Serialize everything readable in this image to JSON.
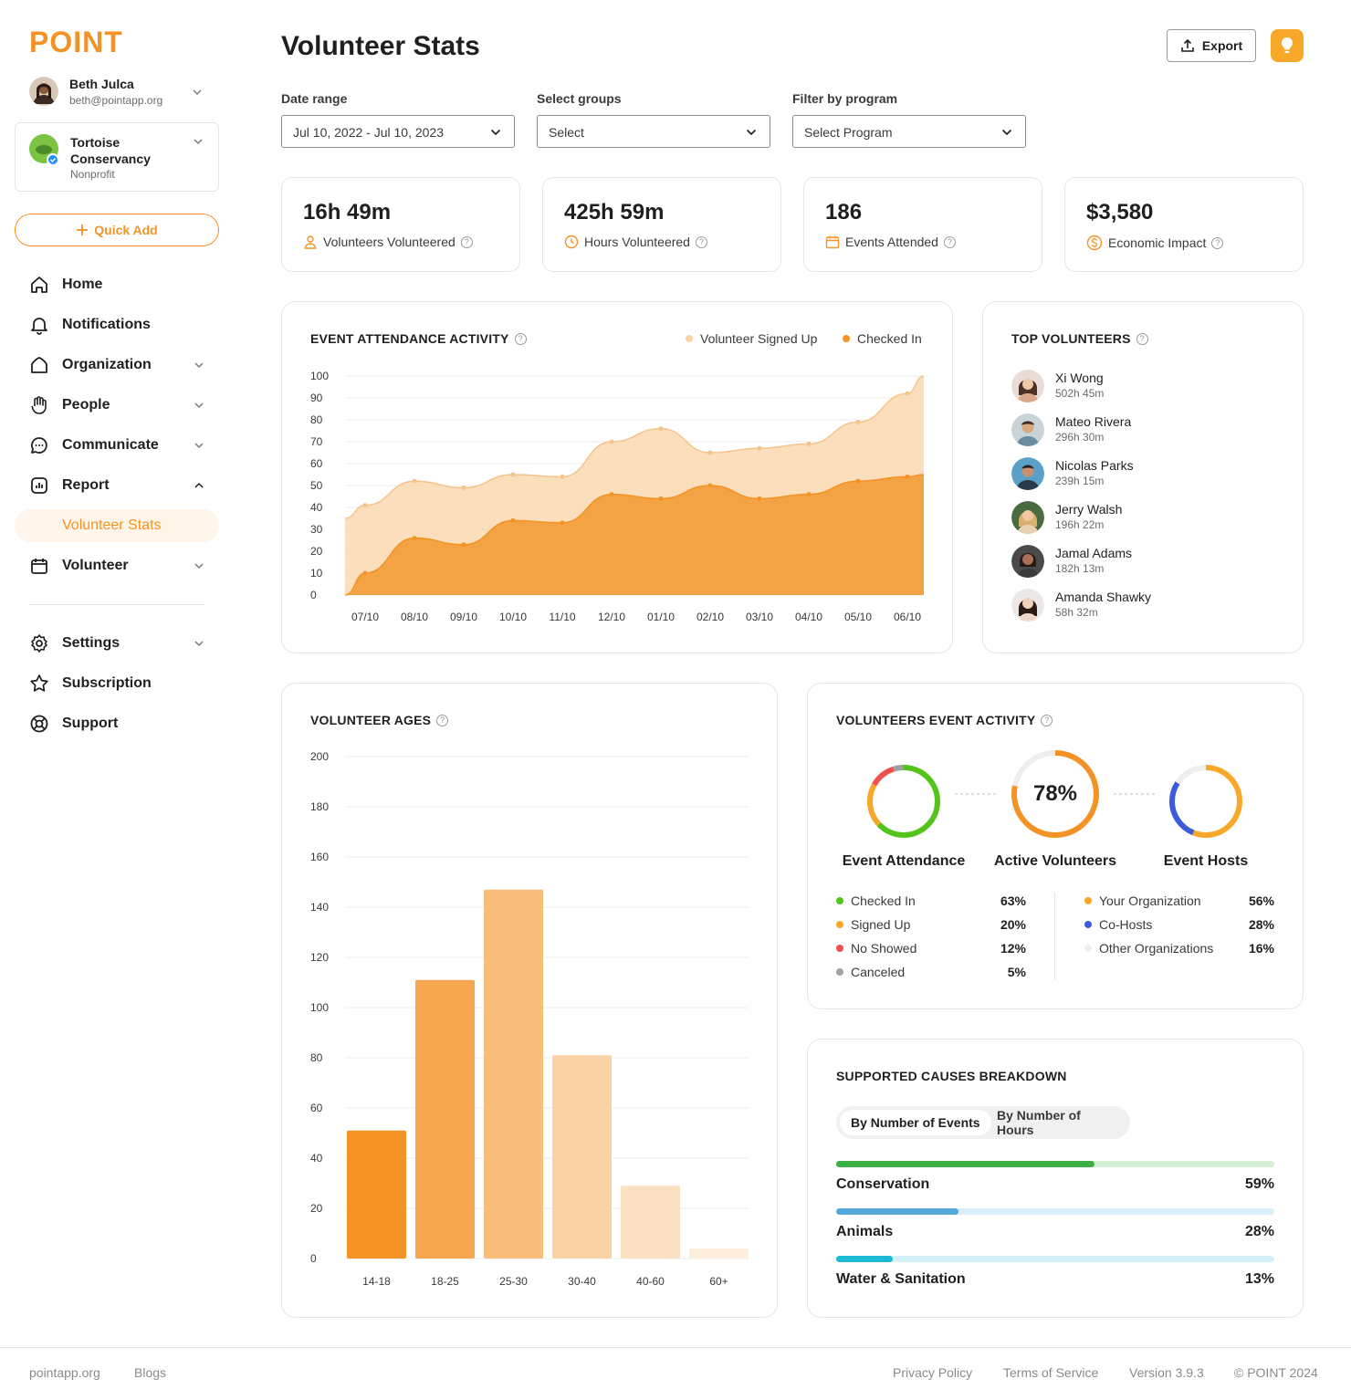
{
  "brand": {
    "logo": "POINT",
    "accent": "#f39325"
  },
  "user": {
    "name": "Beth Julca",
    "email": "beth@pointapp.org"
  },
  "org": {
    "name": "Tortoise Conservancy",
    "type": "Nonprofit"
  },
  "quick_add": "Quick Add",
  "nav": {
    "home": "Home",
    "notifications": "Notifications",
    "organization": "Organization",
    "people": "People",
    "communicate": "Communicate",
    "report": "Report",
    "volunteer_stats": "Volunteer Stats",
    "volunteer": "Volunteer",
    "settings": "Settings",
    "subscription": "Subscription",
    "support": "Support"
  },
  "header": {
    "title": "Volunteer Stats",
    "export": "Export"
  },
  "filters": {
    "date_label": "Date range",
    "date_value": "Jul 10, 2022 - Jul 10, 2023",
    "groups_label": "Select groups",
    "groups_value": "Select",
    "program_label": "Filter by program",
    "program_value": "Select Program"
  },
  "stats": [
    {
      "value": "16h 49m",
      "label": "Volunteers Volunteered",
      "icon": "person-icon"
    },
    {
      "value": "425h 59m",
      "label": "Hours Volunteered",
      "icon": "clock-icon"
    },
    {
      "value": "186",
      "label": "Events Attended",
      "icon": "calendar-icon"
    },
    {
      "value": "$3,580",
      "label": "Economic Impact",
      "icon": "dollar-icon"
    }
  ],
  "attendance": {
    "title": "EVENT ATTENDANCE ACTIVITY",
    "legend_signed": "Volunteer Signed Up",
    "legend_checked": "Checked In"
  },
  "top_volunteers": {
    "title": "TOP VOLUNTEERS",
    "items": [
      {
        "name": "Xi Wong",
        "hours": "502h 45m"
      },
      {
        "name": "Mateo Rivera",
        "hours": "296h 30m"
      },
      {
        "name": "Nicolas Parks",
        "hours": "239h 15m"
      },
      {
        "name": "Jerry Walsh",
        "hours": "196h 22m"
      },
      {
        "name": "Jamal Adams",
        "hours": "182h 13m"
      },
      {
        "name": "Amanda Shawky",
        "hours": "58h 32m"
      }
    ]
  },
  "ages": {
    "title": "VOLUNTEER AGES"
  },
  "event_activity": {
    "title": "VOLUNTEERS EVENT ACTIVITY",
    "attendance_label": "Event Attendance",
    "active_label": "Active Volunteers",
    "active_value": "78%",
    "hosts_label": "Event Hosts",
    "attendance_items": [
      {
        "label": "Checked In",
        "value": "63%",
        "color": "#52c41a"
      },
      {
        "label": "Signed Up",
        "value": "20%",
        "color": "#f7a829"
      },
      {
        "label": "No Showed",
        "value": "12%",
        "color": "#f05050"
      },
      {
        "label": "Canceled",
        "value": "5%",
        "color": "#a0a0a0"
      }
    ],
    "host_items": [
      {
        "label": "Your Organization",
        "value": "56%",
        "color": "#f7a829"
      },
      {
        "label": "Co-Hosts",
        "value": "28%",
        "color": "#3b5bdb"
      },
      {
        "label": "Other Organizations",
        "value": "16%",
        "color": "#eeeeee"
      }
    ]
  },
  "causes": {
    "title": "SUPPORTED CAUSES BREAKDOWN",
    "tab_events": "By Number of Events",
    "tab_hours": "By Number of Hours",
    "items": [
      {
        "label": "Conservation",
        "value": "59%",
        "pct": 0.59,
        "color": "#3cb043",
        "track": "#d4efd6"
      },
      {
        "label": "Animals",
        "value": "28%",
        "pct": 0.28,
        "color": "#55a8d8",
        "track": "#dceef8"
      },
      {
        "label": "Water & Sanitation",
        "value": "13%",
        "pct": 0.13,
        "color": "#1eb8d8",
        "track": "#d2f1f8"
      }
    ]
  },
  "footer": {
    "site": "pointapp.org",
    "blogs": "Blogs",
    "privacy": "Privacy Policy",
    "terms": "Terms of Service",
    "version": "Version 3.9.3",
    "copyright": "© POINT 2024"
  },
  "chart_data": [
    {
      "type": "area",
      "title": "EVENT ATTENDANCE ACTIVITY",
      "x": [
        "07/10",
        "08/10",
        "09/10",
        "10/10",
        "11/10",
        "12/10",
        "01/10",
        "02/10",
        "03/10",
        "04/10",
        "05/10",
        "06/10"
      ],
      "ylim": [
        0,
        100
      ],
      "yticks": [
        0,
        10,
        20,
        30,
        40,
        50,
        60,
        70,
        80,
        90,
        100
      ],
      "series": [
        {
          "name": "Volunteer Signed Up",
          "color": "#f9d3a6",
          "values": [
            41,
            52,
            49,
            55,
            54,
            70,
            76,
            65,
            67,
            69,
            79,
            92
          ]
        },
        {
          "name": "Checked In",
          "color": "#f39325",
          "values": [
            10,
            26,
            23,
            34,
            33,
            46,
            44,
            50,
            44,
            46,
            52,
            54
          ]
        }
      ],
      "legend": "top-right",
      "grid": true
    },
    {
      "type": "bar",
      "title": "VOLUNTEER AGES",
      "categories": [
        "14-18",
        "18-25",
        "25-30",
        "30-40",
        "40-60",
        "60+"
      ],
      "values": [
        51,
        111,
        147,
        81,
        29,
        4
      ],
      "colors": [
        "#f39325",
        "#f6a850",
        "#f8bd78",
        "#f9d3a6",
        "#fbe1c2",
        "#fdeedd"
      ],
      "ylim": [
        0,
        200
      ],
      "yticks": [
        0,
        20,
        40,
        60,
        80,
        100,
        120,
        140,
        160,
        180,
        200
      ],
      "grid": true
    }
  ]
}
